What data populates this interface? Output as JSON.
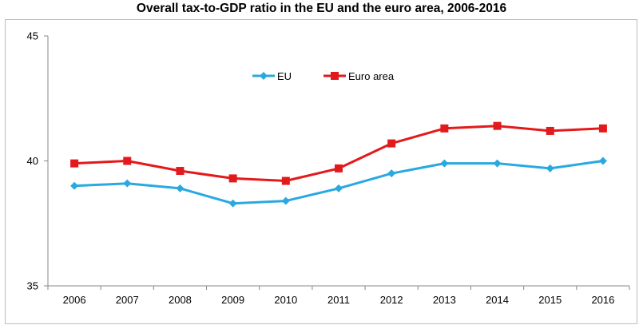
{
  "chart_data": {
    "type": "line",
    "title": "Overall tax-to-GDP ratio in the EU and the euro area, 2006-2016",
    "xlabel": "",
    "ylabel": "",
    "categories": [
      "2006",
      "2007",
      "2008",
      "2009",
      "2010",
      "2011",
      "2012",
      "2013",
      "2014",
      "2015",
      "2016"
    ],
    "ylim": [
      35,
      45
    ],
    "yticks": [
      "35",
      "40",
      "45"
    ],
    "grid": false,
    "legend_position": "top-center",
    "series": [
      {
        "name": "EU",
        "color": "#29a9e0",
        "marker": "diamond",
        "values": [
          39.0,
          39.1,
          38.9,
          38.3,
          38.4,
          38.9,
          39.5,
          39.9,
          39.9,
          39.7,
          40.0
        ]
      },
      {
        "name": "Euro area",
        "color": "#e31a1c",
        "marker": "square",
        "values": [
          39.9,
          40.0,
          39.6,
          39.3,
          39.2,
          39.7,
          40.7,
          41.3,
          41.4,
          41.2,
          41.3
        ]
      }
    ]
  }
}
